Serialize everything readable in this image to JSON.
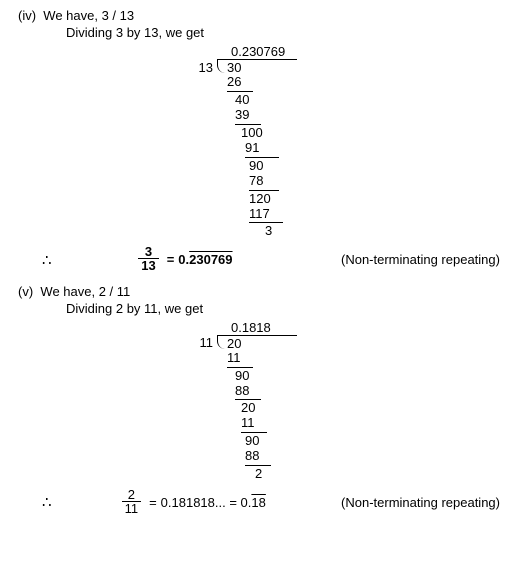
{
  "part_iv": {
    "label": "(iv)",
    "have_text": "We have, 3 / 13",
    "dividing_text": "Dividing 3 by 13, we get",
    "quotient": "0.230769",
    "divisor": "13",
    "dividend": "30",
    "steps": [
      {
        "v": "26",
        "rule_w": 26,
        "pad": 0
      },
      {
        "v": "40",
        "pad": 8
      },
      {
        "v": "39",
        "rule_w": 26,
        "pad": 8
      },
      {
        "v": "100",
        "pad": 14
      },
      {
        "v": "91",
        "rule_w": 34,
        "pad": 18
      },
      {
        "v": "90",
        "pad": 22
      },
      {
        "v": "78",
        "rule_w": 30,
        "pad": 22
      },
      {
        "v": "120",
        "pad": 22
      },
      {
        "v": "117",
        "rule_w": 34,
        "pad": 22
      },
      {
        "v": "3",
        "pad": 38
      }
    ],
    "frac_n": "3",
    "frac_d": "13",
    "result_prefix": "0.",
    "result_rep": "230769",
    "note": "(Non-terminating repeating)"
  },
  "part_v": {
    "label": "(v)",
    "have_text": "We have, 2 / 11",
    "dividing_text": "Dividing 2 by 11, we get",
    "quotient": "0.1818",
    "divisor": "11",
    "dividend": "20",
    "steps": [
      {
        "v": "11",
        "rule_w": 26,
        "pad": 0
      },
      {
        "v": "90",
        "pad": 8
      },
      {
        "v": "88",
        "rule_w": 26,
        "pad": 8
      },
      {
        "v": "20",
        "pad": 14
      },
      {
        "v": "11",
        "rule_w": 26,
        "pad": 14
      },
      {
        "v": "90",
        "pad": 18
      },
      {
        "v": "88",
        "rule_w": 26,
        "pad": 18
      },
      {
        "v": "2",
        "pad": 28
      }
    ],
    "frac_n": "2",
    "frac_d": "11",
    "mid": "0.181818... = 0.",
    "result_rep": "18",
    "note": "(Non-terminating repeating)"
  }
}
